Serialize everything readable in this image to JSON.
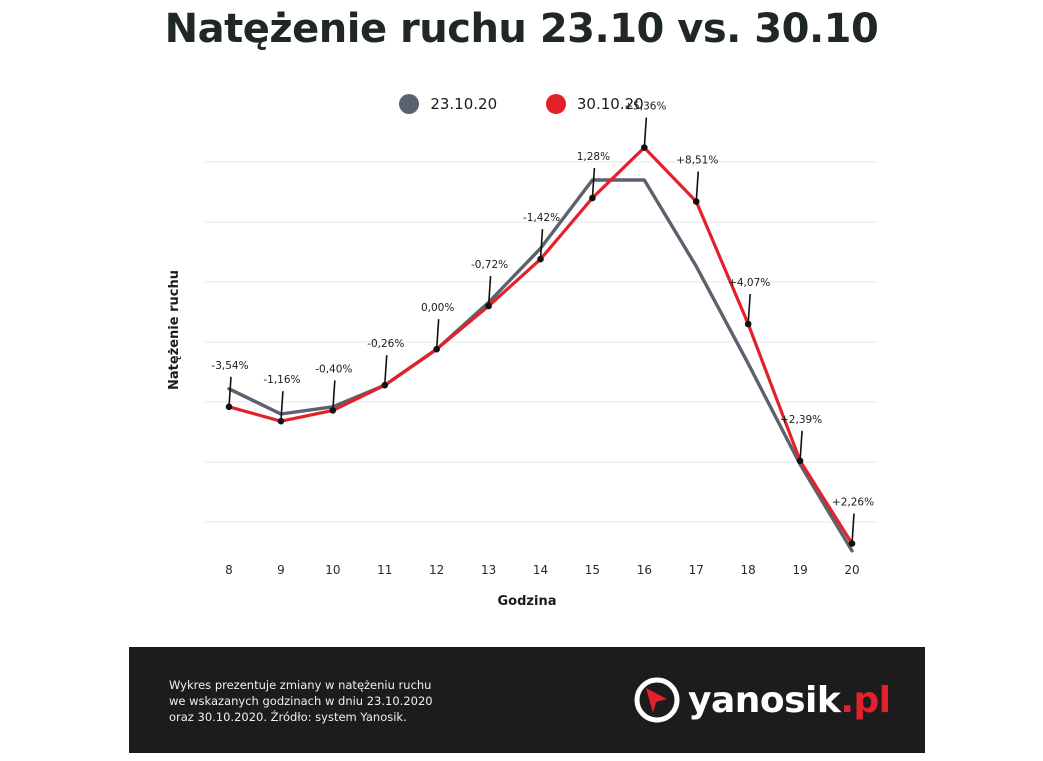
{
  "title": "Natężenie ruchu 23.10 vs. 30.10",
  "colors": {
    "series_a": "#5b616d",
    "series_b": "#e3212b",
    "grid": "#e4e4e4",
    "annotation": "#111111",
    "footer_bg": "#1c1c1c"
  },
  "chart_data": {
    "type": "line",
    "title": "Natężenie ruchu 23.10 vs. 30.10",
    "xlabel": "Godzina",
    "ylabel": "Natężenie ruchu",
    "x": [
      "8",
      "9",
      "10",
      "11",
      "12",
      "13",
      "14",
      "15",
      "16",
      "17",
      "18",
      "19",
      "20"
    ],
    "ylim": [
      0,
      100
    ],
    "grid": true,
    "legend_position": "top-center",
    "series": [
      {
        "name": "23.10.20",
        "color": "#5b616d",
        "values": [
          37,
          30,
          32,
          38,
          48,
          61,
          76,
          95,
          95,
          71,
          44,
          16,
          -8
        ]
      },
      {
        "name": "30.10.20",
        "color": "#e3212b",
        "values": [
          32,
          28,
          31,
          38,
          48,
          60,
          73,
          90,
          104,
          89,
          55,
          17,
          -6
        ]
      }
    ],
    "annotations": [
      "-3,54%",
      "-1,16%",
      "-0,40%",
      "-0,26%",
      "0,00%",
      "-0,72%",
      "-1,42%",
      "1,28%",
      "+5,36%",
      "+8,51%",
      "+4,07%",
      "+2,39%",
      "+2,26%"
    ]
  },
  "footer": {
    "lines": [
      "Wykres prezentuje zmiany w natężeniu ruchu",
      "we wskazanych godzinach w dniu 23.10.2020",
      "oraz 30.10.2020. Źródło: system Yanosik."
    ],
    "brand_name": "yanosik",
    "brand_tld": ".pl",
    "brand_icon": "yanosik-logo-icon"
  }
}
